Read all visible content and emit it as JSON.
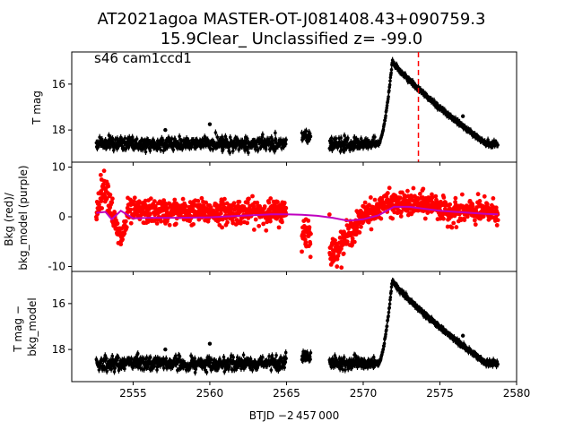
{
  "figure": {
    "title_line1": "AT2021agoa  MASTER-OT-J081408.43+090759.3",
    "title_line2": "15.9Clear_ Unclassified z= -99.0"
  },
  "colors": {
    "lc_points": "#000000",
    "bkg_points": "#ff0000",
    "bkg_model": "#bf00bf",
    "peak_marker": "#ff0000",
    "axes": "#000000"
  },
  "chart_data": [
    {
      "type": "scatter",
      "panel": "top",
      "annotation": "s46 cam1ccd1",
      "ylabel": "T mag",
      "y_inverted": true,
      "xlim": [
        2551.0,
        2580.0
      ],
      "ylim": [
        19.4,
        14.6
      ],
      "yticks": [
        16,
        18
      ],
      "vline_x": 2573.6,
      "series": [
        {
          "segments": [
            {
              "x_start": 2552.6,
              "x_end": 2565.0,
              "y_base": 18.6,
              "y_noise": 0.28
            },
            {
              "x_start": 2566.0,
              "x_end": 2566.6,
              "y_base": 18.3,
              "y_noise": 0.2
            },
            {
              "x_start": 2567.8,
              "x_end": 2570.8,
              "y_base": 18.6,
              "y_noise": 0.28
            },
            {
              "x_start": 2570.8,
              "x_end": 2578.8,
              "y_base": 18.6,
              "y_noise": 0.12
            }
          ],
          "peak": {
            "t0": 2571.0,
            "t_peak": 2571.9,
            "mag_peak": 15.0,
            "decline_end": 2578.0
          }
        }
      ]
    },
    {
      "type": "scatter",
      "panel": "middle",
      "ylabel": "Bkg (red)/\nbkg_model (purple)",
      "xlim": [
        2551.0,
        2580.0
      ],
      "ylim": [
        -11.0,
        11.0
      ],
      "yticks": [
        -10,
        0,
        10
      ],
      "series": [
        {
          "name": "red",
          "segments": [
            {
              "x_start": 2552.6,
              "x_end": 2565.0,
              "y_base": 1.0,
              "y_noise": 2.0
            },
            {
              "x_start": 2566.0,
              "x_end": 2566.6,
              "y_base": -3.0,
              "y_noise": 3.0
            },
            {
              "x_start": 2567.8,
              "x_end": 2578.8,
              "y_base": 1.0,
              "y_noise": 2.0
            }
          ]
        },
        {
          "name": "purple",
          "x": [
            2552.6,
            2553.2,
            2553.6,
            2554.2,
            2555.0,
            2556.0,
            2558.0,
            2560.0,
            2562.0,
            2564.0,
            2565.0,
            2566.0,
            2567.0,
            2568.0,
            2569.0,
            2570.0,
            2571.0,
            2572.0,
            2573.0,
            2574.0,
            2575.0,
            2576.0,
            2577.0,
            2578.0,
            2578.8
          ],
          "y": [
            0.8,
            1.0,
            -0.5,
            1.2,
            -0.3,
            -0.2,
            -0.2,
            -0.1,
            0.2,
            0.5,
            0.5,
            0.4,
            0.2,
            -0.2,
            -0.8,
            -0.5,
            0.3,
            2.0,
            2.0,
            1.6,
            1.2,
            1.0,
            0.8,
            0.6,
            0.5
          ]
        }
      ]
    },
    {
      "type": "scatter",
      "panel": "bottom",
      "ylabel": "T mag −\nbkg_model",
      "xlabel": "BTJD −2 457 000",
      "y_inverted": true,
      "xlim": [
        2551.0,
        2580.0
      ],
      "ylim": [
        19.4,
        14.6
      ],
      "yticks": [
        16,
        18
      ],
      "xticks": [
        2555,
        2560,
        2565,
        2570,
        2575,
        2580
      ],
      "series": [
        {
          "segments": [
            {
              "x_start": 2552.6,
              "x_end": 2565.0,
              "y_base": 18.6,
              "y_noise": 0.28
            },
            {
              "x_start": 2566.0,
              "x_end": 2566.6,
              "y_base": 18.3,
              "y_noise": 0.2
            },
            {
              "x_start": 2567.8,
              "x_end": 2570.8,
              "y_base": 18.6,
              "y_noise": 0.28
            },
            {
              "x_start": 2570.8,
              "x_end": 2578.8,
              "y_base": 18.6,
              "y_noise": 0.12
            }
          ],
          "peak": {
            "t0": 2571.0,
            "t_peak": 2571.9,
            "mag_peak": 15.0,
            "decline_end": 2578.0
          }
        }
      ]
    }
  ]
}
